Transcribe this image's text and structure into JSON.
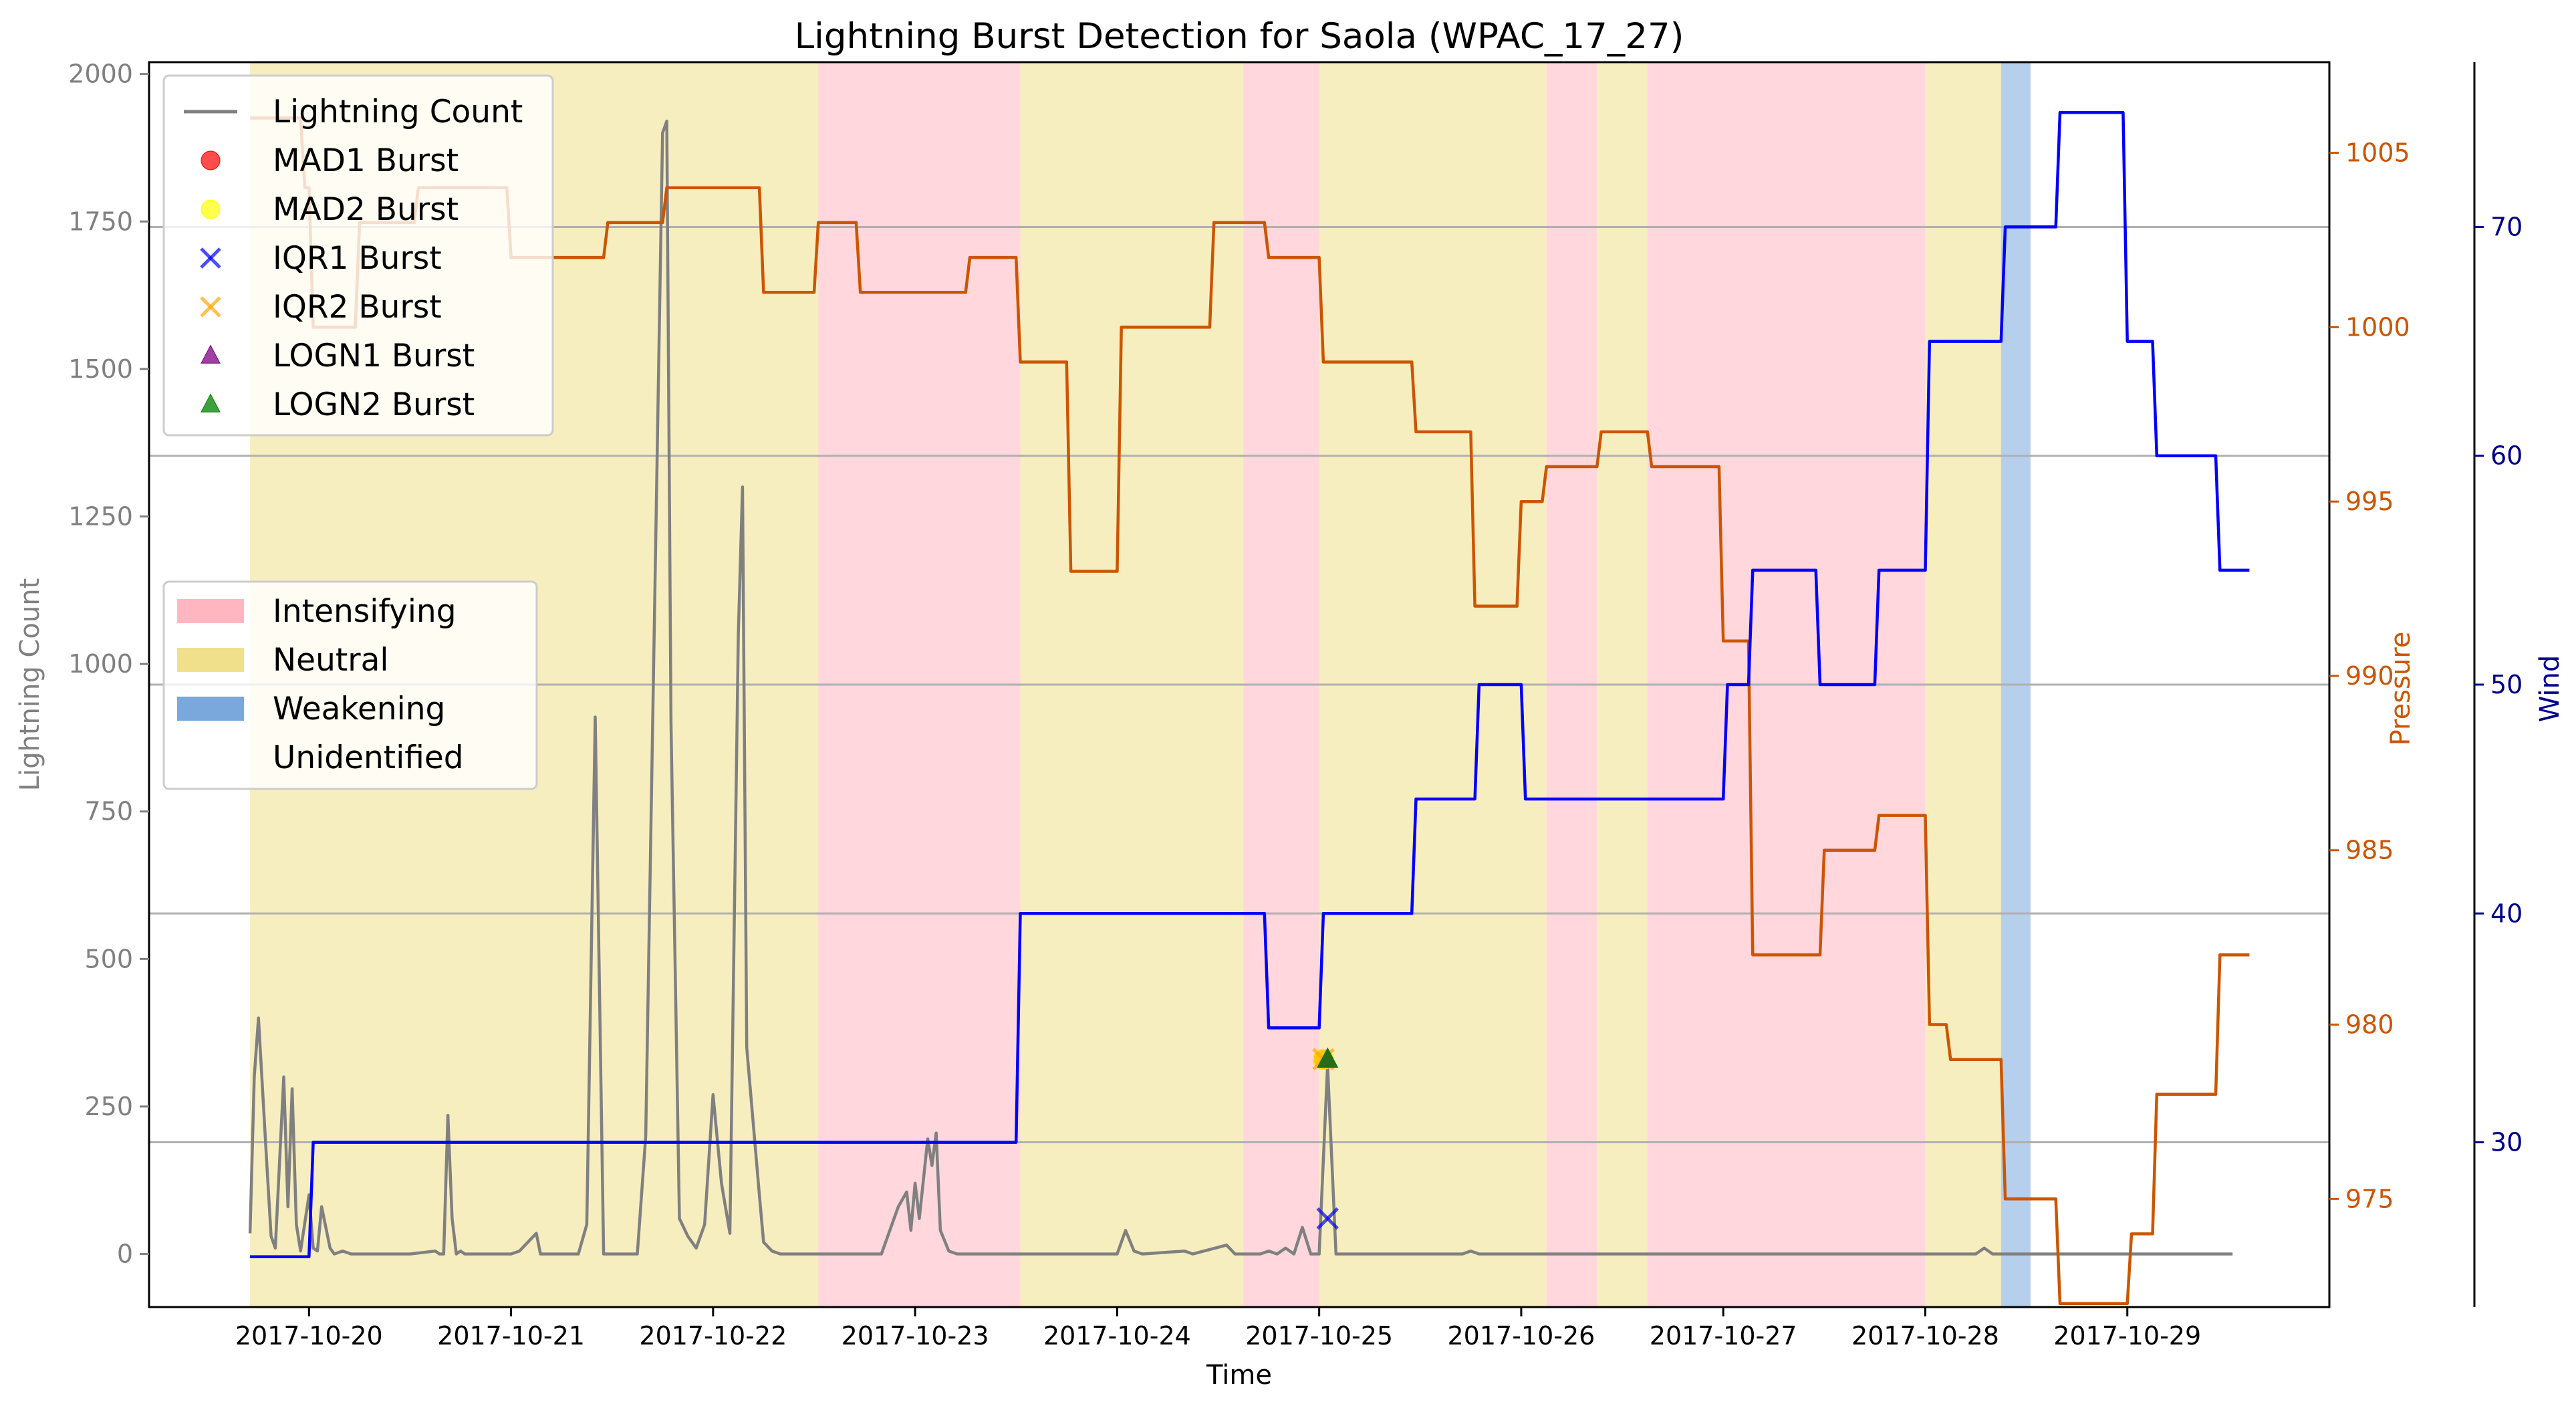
{
  "chart_data": {
    "type": "line",
    "title": "Lightning Burst Detection for Saola (WPAC_17_27)",
    "xlabel": "Time",
    "ylabel_left": "Lightning Count",
    "ylabel_pressure": "Pressure",
    "ylabel_wind": "Wind",
    "x_range": [
      "2017-10-19 05:00",
      "2017-10-30 00:00"
    ],
    "x_ticks": [
      "2017-10-20",
      "2017-10-21",
      "2017-10-22",
      "2017-10-23",
      "2017-10-24",
      "2017-10-25",
      "2017-10-26",
      "2017-10-27",
      "2017-10-28",
      "2017-10-29"
    ],
    "left_axis": {
      "ylim": [
        -90,
        2020
      ],
      "ticks": [
        0,
        250,
        500,
        750,
        1000,
        1250,
        1500,
        1750,
        2000
      ]
    },
    "pressure_axis": {
      "ylim": [
        971.9,
        1007.6
      ],
      "ticks": [
        975,
        980,
        985,
        990,
        995,
        1000,
        1005
      ]
    },
    "wind_axis": {
      "ylim": [
        22.8,
        77.2
      ],
      "ticks": [
        30,
        40,
        50,
        60,
        70
      ]
    },
    "grid": "horizontal lines at wind ticks",
    "legend_top": {
      "placement": "top-left",
      "entries": [
        {
          "label": "Lightning Count",
          "marker": "line",
          "color": "#808080"
        },
        {
          "label": "MAD1 Burst",
          "marker": "circle",
          "color": "#ff0000"
        },
        {
          "label": "MAD2 Burst",
          "marker": "circle",
          "color": "#ffff00"
        },
        {
          "label": "IQR1 Burst",
          "marker": "x",
          "color": "#0000ff"
        },
        {
          "label": "IQR2 Burst",
          "marker": "x",
          "color": "#ffa500"
        },
        {
          "label": "LOGN1 Burst",
          "marker": "triangle",
          "color": "#800080"
        },
        {
          "label": "LOGN2 Burst",
          "marker": "triangle",
          "color": "#008000"
        }
      ]
    },
    "legend_phase": {
      "placement": "center-left",
      "entries": [
        {
          "label": "Intensifying",
          "color": "#ffb6c1"
        },
        {
          "label": "Neutral",
          "color": "#f0e08c"
        },
        {
          "label": "Weakening",
          "color": "#7aa7dc"
        },
        {
          "label": "Unidentified",
          "color": "#ffffff"
        }
      ]
    },
    "phases": [
      {
        "phase": "Neutral",
        "start": "2017-10-19 17:00",
        "end": "2017-10-22 12:30"
      },
      {
        "phase": "Intensifying",
        "start": "2017-10-22 12:30",
        "end": "2017-10-23 12:30"
      },
      {
        "phase": "Neutral",
        "start": "2017-10-23 12:30",
        "end": "2017-10-24 15:00"
      },
      {
        "phase": "Intensifying",
        "start": "2017-10-24 15:00",
        "end": "2017-10-25 00:00"
      },
      {
        "phase": "Neutral",
        "start": "2017-10-25 00:00",
        "end": "2017-10-26 03:00"
      },
      {
        "phase": "Intensifying",
        "start": "2017-10-26 03:00",
        "end": "2017-10-26 09:00"
      },
      {
        "phase": "Neutral",
        "start": "2017-10-26 09:00",
        "end": "2017-10-26 15:00"
      },
      {
        "phase": "Intensifying",
        "start": "2017-10-26 15:00",
        "end": "2017-10-28 00:00"
      },
      {
        "phase": "Neutral",
        "start": "2017-10-28 00:00",
        "end": "2017-10-28 09:00"
      },
      {
        "phase": "Weakening",
        "start": "2017-10-28 09:00",
        "end": "2017-10-28 12:30"
      }
    ],
    "series": [
      {
        "name": "Lightning Count",
        "axis": "left",
        "color": "#808080",
        "points": [
          [
            "2017-10-19 17:00",
            35
          ],
          [
            "2017-10-19 17:30",
            300
          ],
          [
            "2017-10-19 18:00",
            400
          ],
          [
            "2017-10-19 19:00",
            150
          ],
          [
            "2017-10-19 19:30",
            30
          ],
          [
            "2017-10-19 20:00",
            10
          ],
          [
            "2017-10-19 21:00",
            300
          ],
          [
            "2017-10-19 21:30",
            80
          ],
          [
            "2017-10-19 22:00",
            280
          ],
          [
            "2017-10-19 22:30",
            50
          ],
          [
            "2017-10-19 23:00",
            5
          ],
          [
            "2017-10-20 00:00",
            100
          ],
          [
            "2017-10-20 00:30",
            10
          ],
          [
            "2017-10-20 01:00",
            5
          ],
          [
            "2017-10-20 01:30",
            80
          ],
          [
            "2017-10-20 02:30",
            10
          ],
          [
            "2017-10-20 03:00",
            0
          ],
          [
            "2017-10-20 04:00",
            5
          ],
          [
            "2017-10-20 05:00",
            0
          ],
          [
            "2017-10-20 12:00",
            0
          ],
          [
            "2017-10-20 15:00",
            5
          ],
          [
            "2017-10-20 15:30",
            0
          ],
          [
            "2017-10-20 16:00",
            0
          ],
          [
            "2017-10-20 16:30",
            235
          ],
          [
            "2017-10-20 17:00",
            60
          ],
          [
            "2017-10-20 17:30",
            0
          ],
          [
            "2017-10-20 18:00",
            5
          ],
          [
            "2017-10-20 18:30",
            0
          ],
          [
            "2017-10-21 00:00",
            0
          ],
          [
            "2017-10-21 01:00",
            5
          ],
          [
            "2017-10-21 03:00",
            35
          ],
          [
            "2017-10-21 03:30",
            0
          ],
          [
            "2017-10-21 08:00",
            0
          ],
          [
            "2017-10-21 09:00",
            50
          ],
          [
            "2017-10-21 10:00",
            910
          ],
          [
            "2017-10-21 11:00",
            0
          ],
          [
            "2017-10-21 15:00",
            0
          ],
          [
            "2017-10-21 16:00",
            200
          ],
          [
            "2017-10-21 18:00",
            1900
          ],
          [
            "2017-10-21 18:30",
            1920
          ],
          [
            "2017-10-21 19:00",
            900
          ],
          [
            "2017-10-21 20:00",
            60
          ],
          [
            "2017-10-21 21:00",
            30
          ],
          [
            "2017-10-21 22:00",
            10
          ],
          [
            "2017-10-21 23:00",
            50
          ],
          [
            "2017-10-22 00:00",
            270
          ],
          [
            "2017-10-22 01:00",
            120
          ],
          [
            "2017-10-22 02:00",
            35
          ],
          [
            "2017-10-22 03:00",
            1050
          ],
          [
            "2017-10-22 03:30",
            1300
          ],
          [
            "2017-10-22 04:00",
            350
          ],
          [
            "2017-10-22 05:30",
            100
          ],
          [
            "2017-10-22 06:00",
            20
          ],
          [
            "2017-10-22 07:00",
            5
          ],
          [
            "2017-10-22 08:00",
            0
          ],
          [
            "2017-10-22 20:00",
            0
          ],
          [
            "2017-10-22 22:00",
            80
          ],
          [
            "2017-10-22 23:00",
            105
          ],
          [
            "2017-10-22 23:30",
            40
          ],
          [
            "2017-10-23 00:00",
            120
          ],
          [
            "2017-10-23 00:30",
            60
          ],
          [
            "2017-10-23 01:30",
            195
          ],
          [
            "2017-10-23 02:00",
            150
          ],
          [
            "2017-10-23 02:30",
            205
          ],
          [
            "2017-10-23 03:00",
            40
          ],
          [
            "2017-10-23 04:00",
            5
          ],
          [
            "2017-10-23 05:00",
            0
          ],
          [
            "2017-10-24 00:00",
            0
          ],
          [
            "2017-10-24 01:00",
            40
          ],
          [
            "2017-10-24 02:00",
            5
          ],
          [
            "2017-10-24 03:00",
            0
          ],
          [
            "2017-10-24 08:00",
            5
          ],
          [
            "2017-10-24 09:00",
            0
          ],
          [
            "2017-10-24 13:00",
            15
          ],
          [
            "2017-10-24 14:00",
            0
          ],
          [
            "2017-10-24 17:00",
            0
          ],
          [
            "2017-10-24 18:00",
            5
          ],
          [
            "2017-10-24 19:00",
            0
          ],
          [
            "2017-10-24 20:00",
            10
          ],
          [
            "2017-10-24 21:00",
            0
          ],
          [
            "2017-10-24 22:00",
            45
          ],
          [
            "2017-10-24 23:00",
            0
          ],
          [
            "2017-10-25 00:00",
            0
          ],
          [
            "2017-10-25 01:00",
            320
          ],
          [
            "2017-10-25 02:00",
            0
          ],
          [
            "2017-10-25 17:00",
            0
          ],
          [
            "2017-10-25 18:00",
            5
          ],
          [
            "2017-10-25 19:00",
            0
          ],
          [
            "2017-10-28 06:00",
            0
          ],
          [
            "2017-10-28 07:00",
            10
          ],
          [
            "2017-10-28 08:00",
            0
          ],
          [
            "2017-10-29 12:30",
            0
          ]
        ]
      },
      {
        "name": "Pressure",
        "axis": "pressure",
        "color": "#cc5500",
        "points": [
          [
            "2017-10-19 17:00",
            1006
          ],
          [
            "2017-10-19 23:00",
            1006
          ],
          [
            "2017-10-19 23:30",
            1004
          ],
          [
            "2017-10-20 00:00",
            1004
          ],
          [
            "2017-10-20 00:30",
            1000
          ],
          [
            "2017-10-20 05:30",
            1000
          ],
          [
            "2017-10-20 06:00",
            1003
          ],
          [
            "2017-10-20 12:30",
            1003
          ],
          [
            "2017-10-20 13:00",
            1004
          ],
          [
            "2017-10-20 23:30",
            1004
          ],
          [
            "2017-10-21 00:00",
            1002
          ],
          [
            "2017-10-21 11:00",
            1002
          ],
          [
            "2017-10-21 11:30",
            1003
          ],
          [
            "2017-10-21 18:00",
            1003
          ],
          [
            "2017-10-21 18:30",
            1004
          ],
          [
            "2017-10-22 00:00",
            1004
          ],
          [
            "2017-10-22 05:30",
            1004
          ],
          [
            "2017-10-22 06:00",
            1001
          ],
          [
            "2017-10-22 12:00",
            1001
          ],
          [
            "2017-10-22 12:30",
            1003
          ],
          [
            "2017-10-22 17:00",
            1003
          ],
          [
            "2017-10-22 17:30",
            1001
          ],
          [
            "2017-10-23 06:00",
            1001
          ],
          [
            "2017-10-23 06:30",
            1002
          ],
          [
            "2017-10-23 12:00",
            1002
          ],
          [
            "2017-10-23 12:30",
            999
          ],
          [
            "2017-10-23 18:00",
            999
          ],
          [
            "2017-10-23 18:30",
            993
          ],
          [
            "2017-10-24 00:00",
            993
          ],
          [
            "2017-10-24 00:30",
            1000
          ],
          [
            "2017-10-24 11:00",
            1000
          ],
          [
            "2017-10-24 11:30",
            1003
          ],
          [
            "2017-10-24 17:30",
            1003
          ],
          [
            "2017-10-24 18:00",
            1002
          ],
          [
            "2017-10-25 00:00",
            1002
          ],
          [
            "2017-10-25 00:30",
            999
          ],
          [
            "2017-10-25 11:00",
            999
          ],
          [
            "2017-10-25 11:30",
            997
          ],
          [
            "2017-10-25 18:00",
            997
          ],
          [
            "2017-10-25 18:30",
            992
          ],
          [
            "2017-10-25 23:30",
            992
          ],
          [
            "2017-10-26 00:00",
            995
          ],
          [
            "2017-10-26 02:30",
            995
          ],
          [
            "2017-10-26 03:00",
            996
          ],
          [
            "2017-10-26 09:00",
            996
          ],
          [
            "2017-10-26 09:30",
            997
          ],
          [
            "2017-10-26 15:00",
            997
          ],
          [
            "2017-10-26 15:30",
            996
          ],
          [
            "2017-10-26 23:30",
            996
          ],
          [
            "2017-10-27 00:00",
            991
          ],
          [
            "2017-10-27 03:00",
            991
          ],
          [
            "2017-10-27 03:30",
            982
          ],
          [
            "2017-10-27 11:30",
            982
          ],
          [
            "2017-10-27 12:00",
            985
          ],
          [
            "2017-10-27 18:00",
            985
          ],
          [
            "2017-10-27 18:30",
            986
          ],
          [
            "2017-10-28 00:00",
            986
          ],
          [
            "2017-10-28 00:30",
            980
          ],
          [
            "2017-10-28 02:30",
            980
          ],
          [
            "2017-10-28 03:00",
            979
          ],
          [
            "2017-10-28 09:00",
            979
          ],
          [
            "2017-10-28 09:30",
            975
          ],
          [
            "2017-10-28 15:30",
            975
          ],
          [
            "2017-10-28 16:00",
            972
          ],
          [
            "2017-10-29 00:00",
            972
          ],
          [
            "2017-10-29 00:30",
            974
          ],
          [
            "2017-10-29 03:00",
            974
          ],
          [
            "2017-10-29 03:30",
            978
          ],
          [
            "2017-10-29 10:30",
            978
          ],
          [
            "2017-10-29 11:00",
            982
          ],
          [
            "2017-10-29 14:30",
            982
          ]
        ]
      },
      {
        "name": "Wind",
        "axis": "wind",
        "color": "#0000ff",
        "points": [
          [
            "2017-10-19 17:00",
            25
          ],
          [
            "2017-10-20 00:00",
            25
          ],
          [
            "2017-10-20 00:30",
            30
          ],
          [
            "2017-10-23 12:00",
            30
          ],
          [
            "2017-10-23 12:30",
            40
          ],
          [
            "2017-10-24 17:30",
            40
          ],
          [
            "2017-10-24 18:00",
            35
          ],
          [
            "2017-10-25 00:00",
            35
          ],
          [
            "2017-10-25 00:30",
            40
          ],
          [
            "2017-10-25 11:00",
            40
          ],
          [
            "2017-10-25 11:30",
            45
          ],
          [
            "2017-10-25 18:30",
            45
          ],
          [
            "2017-10-25 19:00",
            50
          ],
          [
            "2017-10-26 00:00",
            50
          ],
          [
            "2017-10-26 00:30",
            45
          ],
          [
            "2017-10-27 00:00",
            45
          ],
          [
            "2017-10-27 00:30",
            50
          ],
          [
            "2017-10-27 03:00",
            50
          ],
          [
            "2017-10-27 03:30",
            55
          ],
          [
            "2017-10-27 11:00",
            55
          ],
          [
            "2017-10-27 11:30",
            50
          ],
          [
            "2017-10-27 18:00",
            50
          ],
          [
            "2017-10-27 18:30",
            55
          ],
          [
            "2017-10-28 00:00",
            55
          ],
          [
            "2017-10-28 00:30",
            65
          ],
          [
            "2017-10-28 09:00",
            65
          ],
          [
            "2017-10-28 09:30",
            70
          ],
          [
            "2017-10-28 15:30",
            70
          ],
          [
            "2017-10-28 16:00",
            75
          ],
          [
            "2017-10-28 23:30",
            75
          ],
          [
            "2017-10-29 00:00",
            65
          ],
          [
            "2017-10-29 03:00",
            65
          ],
          [
            "2017-10-29 03:30",
            60
          ],
          [
            "2017-10-29 10:30",
            60
          ],
          [
            "2017-10-29 11:00",
            55
          ],
          [
            "2017-10-29 14:30",
            55
          ]
        ]
      }
    ],
    "bursts": [
      {
        "type": "MAD1 Burst",
        "x": "2017-10-25 00:30",
        "y": 330
      },
      {
        "type": "MAD2 Burst",
        "x": "2017-10-25 00:30",
        "y": 330
      },
      {
        "type": "IQR2 Burst",
        "x": "2017-10-25 00:30",
        "y": 330
      },
      {
        "type": "LOGN1 Burst",
        "x": "2017-10-25 01:00",
        "y": 330
      },
      {
        "type": "LOGN2 Burst",
        "x": "2017-10-25 01:00",
        "y": 330
      },
      {
        "type": "IQR1 Burst",
        "x": "2017-10-25 01:00",
        "y": 60
      }
    ]
  }
}
